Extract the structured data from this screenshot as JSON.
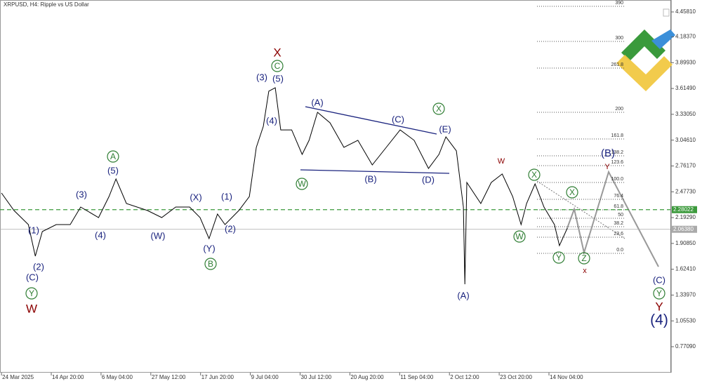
{
  "chart_data": {
    "type": "line",
    "title": "XRPUSD, H4:  Ripple vs US Dollar",
    "x": [
      0.0,
      0.25,
      0.54,
      0.68,
      0.82,
      1.1,
      1.38,
      1.59,
      1.95,
      2.16,
      2.3,
      2.51,
      2.93,
      3.22,
      3.5,
      3.78,
      3.99,
      4.17,
      4.34,
      4.49,
      4.77,
      4.98,
      5.12,
      5.26,
      5.37,
      5.5,
      5.61,
      5.83,
      6.04,
      6.18,
      6.35,
      6.6,
      6.88,
      7.16,
      7.45,
      7.73,
      8.01,
      8.29,
      8.58,
      8.79,
      8.93,
      9.14,
      9.28,
      9.31,
      9.35,
      9.63,
      9.84,
      10.06,
      10.27,
      10.44,
      10.55,
      10.72,
      10.9,
      11.11,
      11.21,
      11.37
    ],
    "values": [
      2.464,
      2.271,
      2.116,
      1.768,
      2.039,
      2.116,
      2.116,
      2.309,
      2.193,
      2.425,
      2.618,
      2.348,
      2.271,
      2.193,
      2.309,
      2.309,
      2.193,
      1.961,
      2.232,
      2.116,
      2.271,
      2.425,
      2.966,
      3.198,
      3.585,
      3.623,
      3.159,
      3.159,
      2.889,
      3.044,
      3.353,
      3.237,
      2.966,
      3.044,
      2.773,
      2.966,
      3.159,
      3.044,
      2.734,
      2.889,
      3.082,
      2.928,
      2.309,
      1.459,
      2.58,
      2.348,
      2.58,
      2.673,
      2.425,
      2.116,
      2.348,
      2.564,
      2.309,
      2.116,
      1.884,
      2.077
    ],
    "color": "#000000",
    "xlim": [
      -0.03,
      13.44
    ],
    "xticks": [
      {
        "value": 0,
        "label": "24 Mar 2025"
      },
      {
        "value": 1,
        "label": "14 Apr 20:00"
      },
      {
        "value": 2,
        "label": "6 May 04:00"
      },
      {
        "value": 3,
        "label": "27 May 12:00"
      },
      {
        "value": 4,
        "label": "17 Jun 20:00"
      },
      {
        "value": 5,
        "label": "9 Jul 04:00"
      },
      {
        "value": 6,
        "label": "30 Jul 12:00"
      },
      {
        "value": 7,
        "label": "20 Aug 20:00"
      },
      {
        "value": 8,
        "label": "11 Sep 04:00"
      },
      {
        "value": 9,
        "label": "2 Oct 12:00"
      },
      {
        "value": 10,
        "label": "23 Oct 20:00"
      },
      {
        "value": 11,
        "label": "14 Nov 04:00"
      }
    ],
    "ylim": [
      0.4926,
      4.5895
    ],
    "yticks": [
      {
        "value": 4.4581,
        "label": "4.45810"
      },
      {
        "value": 4.1837,
        "label": "4.18370"
      },
      {
        "value": 3.8993,
        "label": "3.89930"
      },
      {
        "value": 3.6149,
        "label": "3.61490"
      },
      {
        "value": 3.3305,
        "label": "3.33050"
      },
      {
        "value": 3.0461,
        "label": "3.04610"
      },
      {
        "value": 2.7617,
        "label": "2.76170"
      },
      {
        "value": 2.4773,
        "label": "2.47730"
      },
      {
        "value": 2.1929,
        "label": "2.19290"
      },
      {
        "value": 1.9085,
        "label": "1.90850"
      },
      {
        "value": 1.6241,
        "label": "1.62410"
      },
      {
        "value": 1.3397,
        "label": "1.33970"
      },
      {
        "value": 1.0553,
        "label": "1.05530"
      },
      {
        "value": 0.7709,
        "label": "0.77090"
      }
    ],
    "levels": [
      {
        "value": 2.28022,
        "label": "2.28022",
        "color": "#3c9a3c"
      },
      {
        "value": 2.0638,
        "label": "2.06380",
        "color": "#aaaaaa"
      }
    ],
    "fib_levels": [
      "390",
      "300",
      "261.8",
      "200",
      "161.8",
      "138.2",
      "123.6",
      "100.0",
      "76.4",
      "61.8",
      "50",
      "38.2",
      "23.6",
      "0.0"
    ],
    "wave_labels": [
      "X",
      "C",
      "(3)",
      "(5)",
      "(4)",
      "(A)",
      "(C)",
      "(E)",
      "X",
      "W",
      "(B)",
      "(D)",
      "W",
      "X",
      "X",
      "W",
      "Y",
      "Z",
      "x",
      "(B)",
      "Y",
      "(A)",
      "(C)",
      "Y",
      "Y",
      "(4)",
      "(1)",
      "(2)",
      "(C)",
      "Y",
      "W",
      "(3)",
      "(4)",
      "A",
      "(5)",
      "(W)",
      "(X)",
      "(1)",
      "(2)",
      "(Y)",
      "B"
    ]
  }
}
